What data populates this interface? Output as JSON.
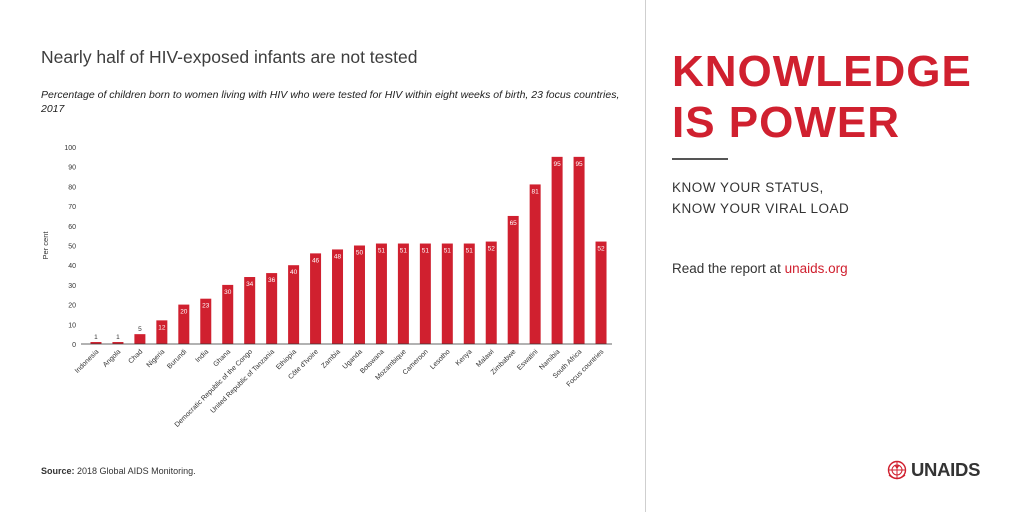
{
  "left": {
    "source_label": "Source:",
    "source_text": "2018 Global AIDS Monitoring."
  },
  "right": {
    "headline_line1": "KNOWLEDGE",
    "headline_line2": "IS POWER",
    "tagline_line1": "KNOW YOUR STATUS,",
    "tagline_line2": "KNOW YOUR VIRAL LOAD",
    "read_prefix": "Read the report at",
    "read_link": "unaids.org",
    "logo_text": "UNAIDS"
  },
  "colors": {
    "accent": "#d0202f",
    "text": "#333333",
    "divider": "#cfcfcf"
  },
  "chart_data": {
    "type": "bar",
    "title": "Nearly half of HIV-exposed infants are not tested",
    "subtitle": "Percentage of children born to women living with HIV who were tested for HIV within eight weeks of birth, 23 focus countries, 2017",
    "xlabel": "",
    "ylabel": "Per cent",
    "ylim": [
      0,
      100
    ],
    "yticks": [
      0,
      10,
      20,
      30,
      40,
      50,
      60,
      70,
      80,
      90,
      100
    ],
    "grid": false,
    "bar_color": "#d0202f",
    "categories": [
      "Indonesia",
      "Angola",
      "Chad",
      "Nigeria",
      "Burundi",
      "India",
      "Ghana",
      "Democratic Republic of the Congo",
      "United Republic of Tanzania",
      "Ethiopia",
      "Côte d'Ivoire",
      "Zambia",
      "Uganda",
      "Botswana",
      "Mozambique",
      "Cameroon",
      "Lesotho",
      "Kenya",
      "Malawi",
      "Zimbabwe",
      "Eswatini",
      "Namibia",
      "South Africa",
      "Focus countries"
    ],
    "values": [
      1,
      1,
      5,
      12,
      20,
      23,
      30,
      34,
      36,
      40,
      46,
      48,
      50,
      51,
      51,
      51,
      51,
      51,
      52,
      65,
      81,
      95,
      95,
      52
    ],
    "value_labels": [
      "1",
      "1",
      "5",
      "12",
      "20",
      "23",
      "30",
      "34",
      "36",
      "40",
      "46",
      "48",
      "50",
      "51",
      "51",
      "51",
      "51",
      "51",
      "52",
      "65",
      "81",
      "95",
      "95",
      "52"
    ]
  }
}
